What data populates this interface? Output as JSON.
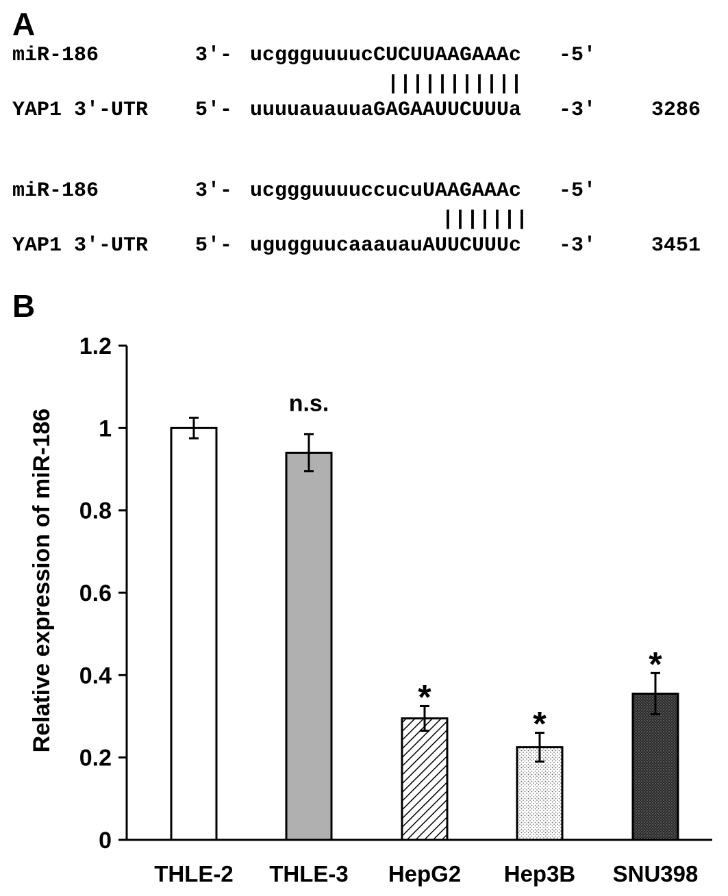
{
  "panel_a": {
    "letter": "A",
    "alignments": [
      {
        "mirna_name": "miR-186",
        "mirna_end": "3′-",
        "mirna_seq": "ucggguuuucCUCUUAAGAAAc",
        "mirna_tail": "-5′",
        "pairs": "|||||||||||",
        "target_name": "YAP1 3′-UTR",
        "target_end": "5′-",
        "target_seq": "uuuuauauuaGAGAAUUCUUUa",
        "target_tail": "-3′",
        "position": "3286"
      },
      {
        "mirna_name": "miR-186",
        "mirna_end": "3′-",
        "mirna_seq": "ucggguuuuccucuUAAGAAAc",
        "mirna_tail": "-5′",
        "pairs": "|||||||",
        "target_name": "YAP1 3′-UTR",
        "target_end": "5′-",
        "target_seq": "ugugguucaaauauAUUCUUUc",
        "target_tail": "-3′",
        "position": "3451"
      }
    ]
  },
  "panel_b": {
    "letter": "B"
  },
  "chart_data": {
    "type": "bar",
    "categories": [
      "THLE-2",
      "THLE-3",
      "HepG2",
      "Hep3B",
      "SNU398"
    ],
    "values": [
      1.0,
      0.94,
      0.295,
      0.225,
      0.355
    ],
    "errors": [
      0.025,
      0.045,
      0.03,
      0.035,
      0.05
    ],
    "annotations": [
      "",
      "n.s.",
      "*",
      "*",
      "*"
    ],
    "fills": [
      "white",
      "gray",
      "diagonal-hatch",
      "light-dots",
      "dark-dots"
    ],
    "ylabel": "Relative expression of miR-186",
    "ylim": [
      0,
      1.2
    ],
    "yticks": [
      0,
      0.2,
      0.4,
      0.6,
      0.8,
      1,
      1.2
    ],
    "ytick_labels": [
      "0",
      "0.2",
      "0.4",
      "0.6",
      "0.8",
      "1",
      "1.2"
    ],
    "grid": false,
    "legend": "none"
  }
}
